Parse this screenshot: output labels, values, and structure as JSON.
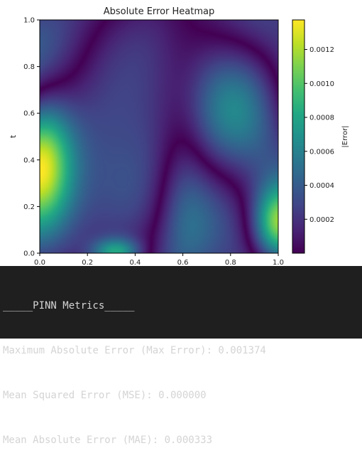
{
  "chart_data": {
    "type": "heatmap",
    "title": "Absolute Error Heatmap",
    "xlabel": "",
    "ylabel": "t",
    "xlim": [
      0.0,
      1.0
    ],
    "ylim": [
      0.0,
      1.0
    ],
    "x_ticks": [
      "0.0",
      "0.2",
      "0.4",
      "0.6",
      "0.8",
      "1.0"
    ],
    "y_ticks": [
      "0.0",
      "0.2",
      "0.4",
      "0.6",
      "0.8",
      "1.0"
    ],
    "colorbar": {
      "label": "|Error|",
      "range": [
        0.0,
        0.001374
      ],
      "ticks": [
        "0.0002",
        "0.0004",
        "0.0006",
        "0.0008",
        "0.0010",
        "0.0012"
      ],
      "tick_values": [
        0.0002,
        0.0004,
        0.0006,
        0.0008,
        0.001,
        0.0012
      ],
      "colormap": "viridis"
    },
    "grid": false
  },
  "console": {
    "header": "_____PINN Metrics_____",
    "lines": [
      "Maximum Absolute Error (Max Error): 0.001374",
      "Mean Squared Error (MSE): 0.000000",
      "Mean Absolute Error (MAE): 0.000333"
    ]
  }
}
